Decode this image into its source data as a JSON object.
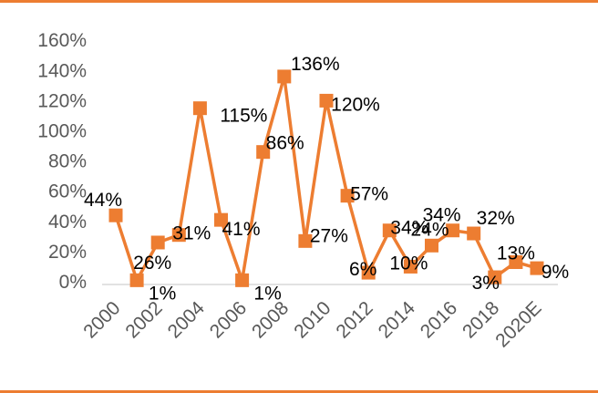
{
  "colors": {
    "accent": "#ED7D31",
    "axis_text": "#595959",
    "label_text": "#000000",
    "axis_line": "#D9D9D9"
  },
  "chart_data": {
    "type": "line",
    "x": [
      "2000",
      "2001",
      "2002",
      "2003",
      "2004",
      "2005",
      "2006",
      "2007",
      "2008",
      "2009",
      "2010",
      "2011",
      "2012",
      "2013",
      "2014",
      "2015",
      "2016",
      "2017",
      "2018",
      "2019",
      "2020E"
    ],
    "x_tick_labels": [
      "2000",
      "2002",
      "2004",
      "2006",
      "2008",
      "2010",
      "2012",
      "2014",
      "2016",
      "2018",
      "2020E"
    ],
    "series": [
      {
        "values": [
          44,
          1,
          26,
          31,
          115,
          41,
          1,
          86,
          136,
          27,
          120,
          57,
          6,
          34,
          10,
          24,
          34,
          32,
          3,
          13,
          9
        ],
        "labels": [
          "44%",
          "1%",
          "26%",
          "31%",
          "115%",
          "41%",
          "1%",
          "86%",
          "136%",
          "27%",
          "120%",
          "57%",
          "6%",
          "34%",
          "10%",
          "24%",
          "34%",
          "32%",
          "3%",
          "13%",
          "9%"
        ]
      }
    ],
    "y_ticks": [
      0,
      20,
      40,
      60,
      80,
      100,
      120,
      140,
      160
    ],
    "y_tick_labels": [
      "0%",
      "20%",
      "40%",
      "60%",
      "80%",
      "100%",
      "120%",
      "140%",
      "160%"
    ],
    "ylim": [
      0,
      160
    ],
    "grid": false,
    "legend": "none",
    "marker": "square"
  }
}
